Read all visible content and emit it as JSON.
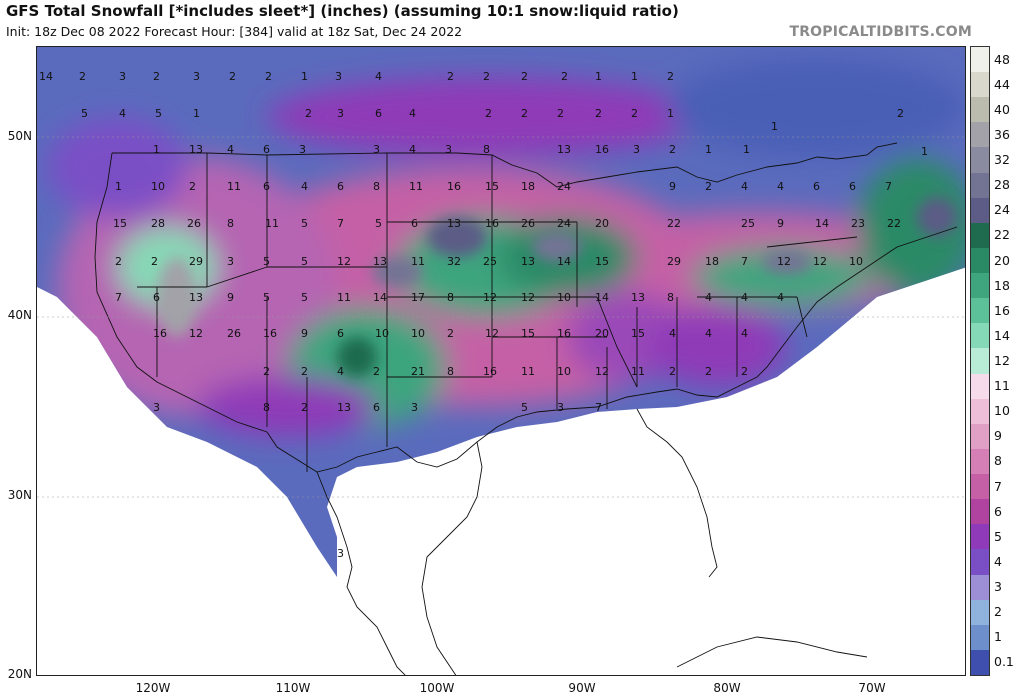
{
  "header": {
    "title": "GFS Total Snowfall [*includes sleet*] (inches) (assuming 10:1 snow:liquid ratio)",
    "subtitle": "Init: 18z Dec 08 2022   Forecast Hour: [384]   valid at 18z Sat, Dec 24 2022",
    "brand": "TROPICALTIDBITS.COM"
  },
  "axes": {
    "lat_labels": [
      "50N",
      "40N",
      "30N",
      "20N"
    ],
    "lon_labels": [
      "120W",
      "110W",
      "100W",
      "90W",
      "80W",
      "70W"
    ]
  },
  "colorbar": {
    "labels": [
      "48",
      "44",
      "40",
      "36",
      "32",
      "28",
      "24",
      "22",
      "20",
      "18",
      "16",
      "14",
      "12",
      "11",
      "10",
      "9",
      "8",
      "7",
      "6",
      "5",
      "4",
      "3",
      "2",
      "1",
      "0.1"
    ],
    "colors": [
      "#f0f0ea",
      "#d8d8cc",
      "#bcbcae",
      "#a2a2a8",
      "#8a8aa0",
      "#737394",
      "#5c5c86",
      "#1e6b50",
      "#2a8a66",
      "#3ea57e",
      "#5cc199",
      "#86d9b6",
      "#b9ecd6",
      "#f6dcea",
      "#edbfd8",
      "#e0a0c6",
      "#d47fb6",
      "#c560a6",
      "#b043a0",
      "#8f3ab8",
      "#7a4fc6",
      "#9c8fd6",
      "#8fb3dc",
      "#6d8fcc",
      "#3e4fae"
    ]
  },
  "map_values": [
    {
      "v": "14"
    },
    {
      "v": "2"
    },
    {
      "v": "3"
    },
    {
      "v": "2"
    },
    {
      "v": "3"
    },
    {
      "v": "2"
    },
    {
      "v": "2"
    },
    {
      "v": "1"
    },
    {
      "v": "3"
    },
    {
      "v": "4"
    },
    {
      "v": "2"
    },
    {
      "v": "2"
    },
    {
      "v": "2"
    },
    {
      "v": "2"
    },
    {
      "v": "1"
    },
    {
      "v": "1"
    },
    {
      "v": "2"
    },
    {
      "v": "1"
    },
    {
      "v": "5"
    },
    {
      "v": "4"
    },
    {
      "v": "5"
    },
    {
      "v": "1"
    },
    {
      "v": "2"
    },
    {
      "v": "3"
    },
    {
      "v": "6"
    },
    {
      "v": "4"
    },
    {
      "v": "2"
    },
    {
      "v": "2"
    },
    {
      "v": "2"
    },
    {
      "v": "2"
    },
    {
      "v": "2"
    },
    {
      "v": "1"
    },
    {
      "v": "2"
    },
    {
      "v": "1"
    },
    {
      "v": "13"
    },
    {
      "v": "4"
    },
    {
      "v": "6"
    },
    {
      "v": "3"
    },
    {
      "v": "3"
    },
    {
      "v": "4"
    },
    {
      "v": "3"
    },
    {
      "v": "8"
    },
    {
      "v": "13"
    },
    {
      "v": "16"
    },
    {
      "v": "3"
    },
    {
      "v": "2"
    },
    {
      "v": "1"
    },
    {
      "v": "1"
    },
    {
      "v": "1"
    },
    {
      "v": "1"
    },
    {
      "v": "10"
    },
    {
      "v": "2"
    },
    {
      "v": "11"
    },
    {
      "v": "6"
    },
    {
      "v": "4"
    },
    {
      "v": "6"
    },
    {
      "v": "8"
    },
    {
      "v": "11"
    },
    {
      "v": "16"
    },
    {
      "v": "15"
    },
    {
      "v": "18"
    },
    {
      "v": "24"
    },
    {
      "v": "9"
    },
    {
      "v": "2"
    },
    {
      "v": "4"
    },
    {
      "v": "4"
    },
    {
      "v": "6"
    },
    {
      "v": "6"
    },
    {
      "v": "7"
    },
    {
      "v": "15"
    },
    {
      "v": "28"
    },
    {
      "v": "26"
    },
    {
      "v": "8"
    },
    {
      "v": "11"
    },
    {
      "v": "5"
    },
    {
      "v": "7"
    },
    {
      "v": "5"
    },
    {
      "v": "6"
    },
    {
      "v": "13"
    },
    {
      "v": "16"
    },
    {
      "v": "26"
    },
    {
      "v": "24"
    },
    {
      "v": "20"
    },
    {
      "v": "22"
    },
    {
      "v": "25"
    },
    {
      "v": "9"
    },
    {
      "v": "14"
    },
    {
      "v": "23"
    },
    {
      "v": "22"
    },
    {
      "v": "2"
    },
    {
      "v": "2"
    },
    {
      "v": "29"
    },
    {
      "v": "3"
    },
    {
      "v": "5"
    },
    {
      "v": "5"
    },
    {
      "v": "12"
    },
    {
      "v": "13"
    },
    {
      "v": "11"
    },
    {
      "v": "32"
    },
    {
      "v": "25"
    },
    {
      "v": "13"
    },
    {
      "v": "14"
    },
    {
      "v": "15"
    },
    {
      "v": "29"
    },
    {
      "v": "18"
    },
    {
      "v": "7"
    },
    {
      "v": "12"
    },
    {
      "v": "12"
    },
    {
      "v": "10"
    },
    {
      "v": "7"
    },
    {
      "v": "6"
    },
    {
      "v": "13"
    },
    {
      "v": "9"
    },
    {
      "v": "5"
    },
    {
      "v": "5"
    },
    {
      "v": "11"
    },
    {
      "v": "14"
    },
    {
      "v": "17"
    },
    {
      "v": "8"
    },
    {
      "v": "12"
    },
    {
      "v": "12"
    },
    {
      "v": "10"
    },
    {
      "v": "14"
    },
    {
      "v": "13"
    },
    {
      "v": "8"
    },
    {
      "v": "4"
    },
    {
      "v": "4"
    },
    {
      "v": "4"
    },
    {
      "v": "16"
    },
    {
      "v": "12"
    },
    {
      "v": "26"
    },
    {
      "v": "16"
    },
    {
      "v": "9"
    },
    {
      "v": "6"
    },
    {
      "v": "10"
    },
    {
      "v": "10"
    },
    {
      "v": "2"
    },
    {
      "v": "12"
    },
    {
      "v": "15"
    },
    {
      "v": "16"
    },
    {
      "v": "20"
    },
    {
      "v": "15"
    },
    {
      "v": "4"
    },
    {
      "v": "4"
    },
    {
      "v": "4"
    },
    {
      "v": "2"
    },
    {
      "v": "2"
    },
    {
      "v": "4"
    },
    {
      "v": "2"
    },
    {
      "v": "21"
    },
    {
      "v": "8"
    },
    {
      "v": "16"
    },
    {
      "v": "11"
    },
    {
      "v": "10"
    },
    {
      "v": "12"
    },
    {
      "v": "11"
    },
    {
      "v": "2"
    },
    {
      "v": "2"
    },
    {
      "v": "2"
    },
    {
      "v": "3"
    },
    {
      "v": "8"
    },
    {
      "v": "2"
    },
    {
      "v": "13"
    },
    {
      "v": "6"
    },
    {
      "v": "3"
    },
    {
      "v": "5"
    },
    {
      "v": "3"
    },
    {
      "v": "7"
    },
    {
      "v": "3"
    },
    {
      "v": "1"
    },
    {
      "v": "3"
    }
  ]
}
